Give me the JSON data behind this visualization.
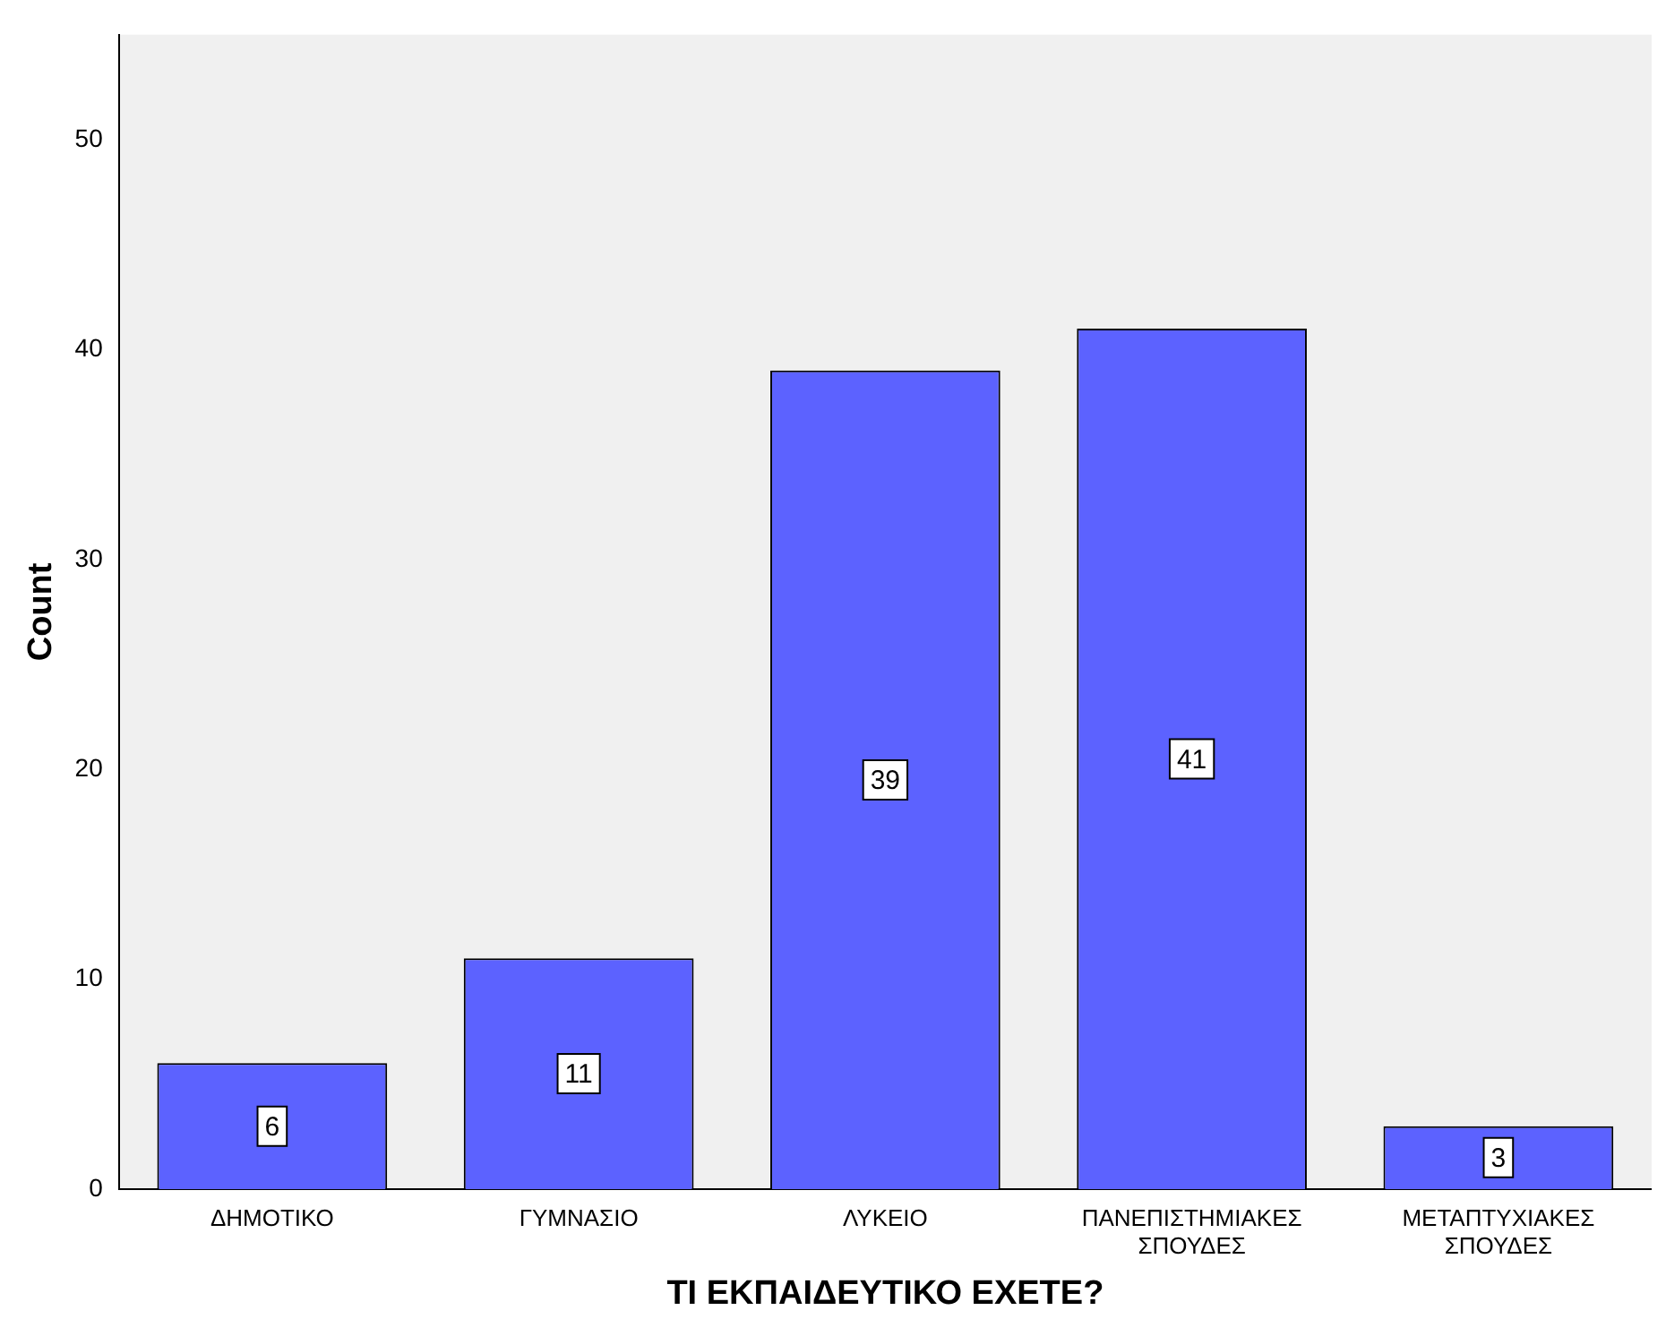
{
  "chart_data": {
    "type": "bar",
    "xlabel": "ΤΙ ΕΚΠΑΙΔΕΥΤΙΚΟ ΕΧΕΤΕ?",
    "ylabel": "Count",
    "categories": [
      "ΔΗΜΟΤΙΚΟ",
      "ΓΥΜΝΑΣΙΟ",
      "ΛΥΚΕΙΟ",
      "ΠΑΝΕΠΙΣΤΗΜΙΑΚΕΣ ΣΠΟΥΔΕΣ",
      "ΜΕΤΑΠΤΥΧΙΑΚΕΣ ΣΠΟΥΔΕΣ"
    ],
    "values": [
      6,
      11,
      39,
      41,
      3
    ],
    "color": "#5c62ff",
    "ylim": [
      0,
      55
    ],
    "yticks": [
      0,
      10,
      20,
      30,
      40,
      50
    ],
    "grid": false,
    "legend": false,
    "data_labels": true
  }
}
